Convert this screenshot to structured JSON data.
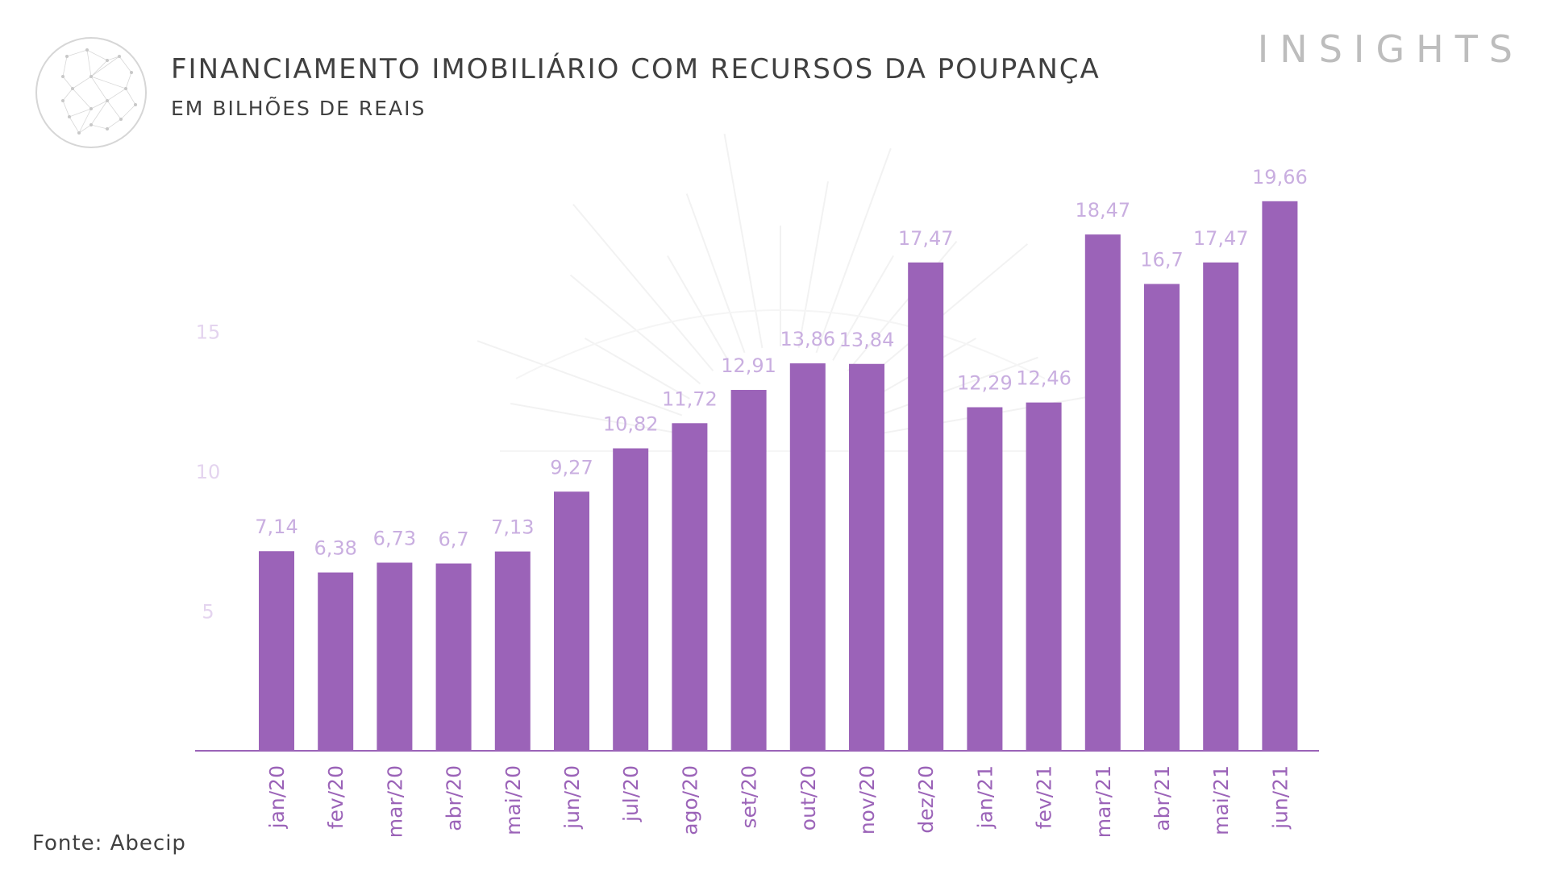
{
  "header": {
    "title": "FINANCIAMENTO IMOBILIÁRIO COM RECURSOS DA POUPANÇA",
    "subtitle": "EM BILHÕES DE REAIS",
    "brand": "INSIGHTS"
  },
  "footer": {
    "source": "Fonte: Abecip"
  },
  "colors": {
    "bar": "#9b63b8",
    "label": "#c9aee0",
    "axis": "#9b63b8",
    "tick_label": "#e4d4ef"
  },
  "chart_data": {
    "type": "bar",
    "title": "FINANCIAMENTO IMOBILIÁRIO COM RECURSOS DA POUPANÇA",
    "subtitle": "EM BILHÕES DE REAIS",
    "xlabel": "",
    "ylabel": "",
    "categories": [
      "jan/20",
      "fev/20",
      "mar/20",
      "abr/20",
      "mai/20",
      "jun/20",
      "jul/20",
      "ago/20",
      "set/20",
      "out/20",
      "nov/20",
      "dez/20",
      "jan/21",
      "fev/21",
      "mar/21",
      "abr/21",
      "mai/21",
      "jun/21"
    ],
    "values": [
      7.14,
      6.38,
      6.73,
      6.7,
      7.13,
      9.27,
      10.82,
      11.72,
      12.91,
      13.86,
      13.84,
      17.47,
      12.29,
      12.46,
      18.47,
      16.7,
      17.47,
      19.66
    ],
    "value_labels": [
      "7,14",
      "6,38",
      "6,73",
      "6,7",
      "7,13",
      "9,27",
      "10,82",
      "11,72",
      "12,91",
      "13,86",
      "13,84",
      "17,47",
      "12,29",
      "12,46",
      "18,47",
      "16,7",
      "17,47",
      "19,66"
    ],
    "yticks": [
      5,
      10,
      15
    ],
    "ytick_labels": [
      "5",
      "10",
      "15"
    ],
    "ylim": [
      0,
      20
    ],
    "grid": false,
    "legend": "none"
  }
}
